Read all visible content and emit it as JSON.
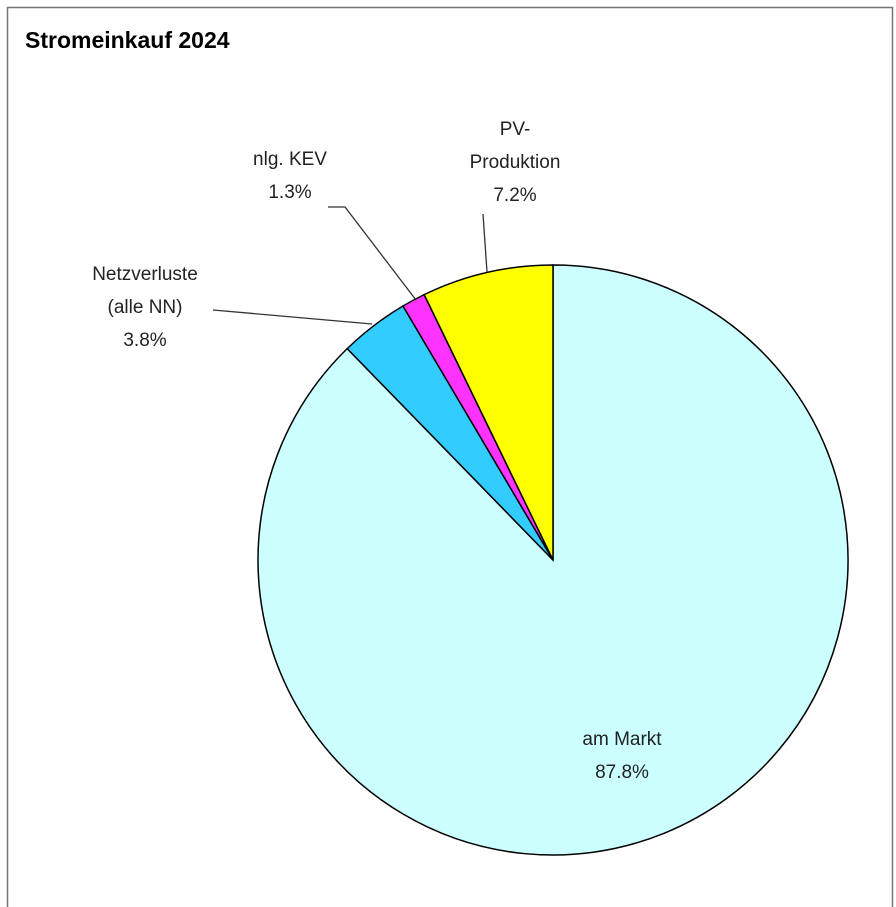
{
  "chart_data": {
    "type": "pie",
    "title": "Stromeinkauf 2024",
    "categories": [
      [
        "am Markt"
      ],
      [
        "Netzverluste",
        "(alle NN)"
      ],
      [
        "nlg. KEV"
      ],
      [
        "PV-",
        "Produktion"
      ]
    ],
    "values": [
      87.8,
      3.8,
      1.3,
      7.2
    ],
    "value_labels": [
      "87.8%",
      "3.8%",
      "1.3%",
      "7.2%"
    ],
    "colors": [
      "#ccffff",
      "#33ccff",
      "#ff33ff",
      "#ffff00"
    ]
  }
}
